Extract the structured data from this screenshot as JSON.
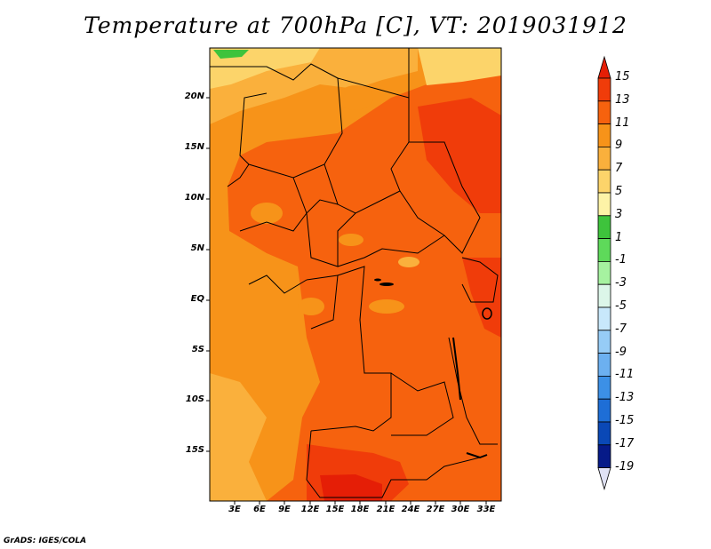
{
  "title": "Temperature at 700hPa [C], VT: 2019031912",
  "credit": "GrADS: IGES/COLA",
  "map": {
    "lat_range": [
      -19,
      24
    ],
    "lon_range": [
      0,
      34
    ],
    "lat_ticks": [
      "20N",
      "15N",
      "10N",
      "5N",
      "EQ",
      "5S",
      "10S",
      "15S"
    ],
    "lon_ticks": [
      "3E",
      "6E",
      "9E",
      "12E",
      "15E",
      "18E",
      "21E",
      "24E",
      "27E",
      "30E",
      "33E"
    ]
  },
  "colorbar": {
    "labels": [
      "15",
      "13",
      "11",
      "9",
      "7",
      "5",
      "3",
      "1",
      "-1",
      "-3",
      "-5",
      "-7",
      "-9",
      "-11",
      "-13",
      "-15",
      "-17",
      "-19"
    ],
    "colors": [
      "#e51e06",
      "#f03c0a",
      "#f6620e",
      "#f79319",
      "#fab03c",
      "#fcd46a",
      "#fdf3a7",
      "#3ec33c",
      "#5ed95a",
      "#a6f2a0",
      "#dcf6e9",
      "#c8e8fb",
      "#96ccf6",
      "#6cb0f0",
      "#3c90e6",
      "#1e6ed6",
      "#0a48b6",
      "#061a88",
      "#020a5a",
      "#e0e2f4"
    ]
  }
}
